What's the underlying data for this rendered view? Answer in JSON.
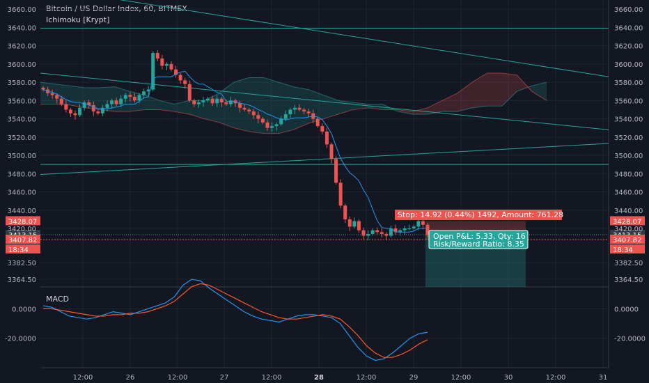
{
  "header": {
    "symbol_title": "Bitcoin / US Dollar Index, 60, BITMEX",
    "indicator1": "Ichimoku [Krypt]",
    "indicator2": "MACD"
  },
  "colors": {
    "background": "#131722",
    "grid": "#1f2333",
    "up": "#26a69a",
    "down": "#ef5350",
    "price_line": "#ef5350",
    "trend_lines": "#26a69a",
    "macd_line": "#2196f3",
    "signal_line": "#ff5722"
  },
  "chart_data": [
    {
      "type": "candlestick",
      "title": "Bitcoin / US Dollar Index, 60, BITMEX",
      "x_ticks": [
        "12:00",
        "26",
        "12:00",
        "27",
        "12:00",
        "28",
        "12:00",
        "29",
        "12:00",
        "30",
        "12:00",
        "31"
      ],
      "y_ticks": [
        "3660.00",
        "3640.00",
        "3620.00",
        "3600.00",
        "3580.00",
        "3560.00",
        "3540.00",
        "3520.00",
        "3500.00",
        "3480.00",
        "3460.00",
        "3440.00",
        "3420.00",
        "3382.50",
        "3364.50"
      ],
      "ylim": [
        3356,
        3670
      ],
      "price_labels": {
        "stop_price": "3428.07",
        "current": "3413.15",
        "entry": "3407.82",
        "countdown": "18:34"
      },
      "annotations": {
        "stop_box": "Stop: 14.92 (0.44%) 1492, Amount: 761.28",
        "pnl_box_line1": "Open P&L: 5.33, Qty: 16",
        "pnl_box_line2": "Risk/Reward Ratio: 8.35"
      },
      "close_series": [
        3572,
        3568,
        3566,
        3562,
        3556,
        3550,
        3546,
        3544,
        3552,
        3558,
        3555,
        3548,
        3546,
        3552,
        3556,
        3560,
        3556,
        3562,
        3566,
        3564,
        3560,
        3566,
        3570,
        3572,
        3612,
        3606,
        3598,
        3600,
        3594,
        3588,
        3582,
        3578,
        3560,
        3556,
        3558,
        3560,
        3562,
        3557,
        3562,
        3558,
        3556,
        3560,
        3557,
        3552,
        3550,
        3548,
        3544,
        3540,
        3536,
        3530,
        3532,
        3534,
        3540,
        3545,
        3550,
        3552,
        3550,
        3548,
        3546,
        3540,
        3532,
        3526,
        3512,
        3496,
        3470,
        3445,
        3430,
        3422,
        3428,
        3418,
        3412,
        3414,
        3418,
        3416,
        3414,
        3412,
        3420,
        3416,
        3418,
        3420,
        3420,
        3422,
        3428,
        3424,
        3413
      ],
      "kumo_span_a": [
        3580,
        3578,
        3576,
        3574,
        3574,
        3575,
        3570,
        3566,
        3560,
        3556,
        3560,
        3560,
        3568,
        3580,
        3585,
        3585,
        3580,
        3575,
        3572,
        3566,
        3560,
        3558,
        3556,
        3556,
        3548,
        3545,
        3545,
        3548,
        3548,
        3552,
        3554,
        3554,
        3570,
        3576,
        3580
      ],
      "kumo_span_b": [
        3556,
        3556,
        3555,
        3552,
        3550,
        3548,
        3548,
        3550,
        3550,
        3548,
        3545,
        3540,
        3536,
        3530,
        3526,
        3524,
        3524,
        3528,
        3535,
        3540,
        3545,
        3550,
        3552,
        3550,
        3550,
        3548,
        3552,
        3560,
        3568,
        3580,
        3590,
        3590,
        3588,
        3570,
        3560
      ]
    },
    {
      "type": "line",
      "title": "MACD",
      "y_ticks": [
        "0.0000",
        "-20.0000"
      ],
      "series": [
        {
          "values": [
            2,
            1,
            -2,
            -5,
            -6,
            -7,
            -6,
            -4,
            -2,
            -3,
            -4,
            -2,
            0,
            2,
            4,
            8,
            16,
            20,
            19,
            14,
            10,
            6,
            2,
            -2,
            -5,
            -7,
            -8,
            -9,
            -7,
            -5,
            -4,
            -4,
            -5,
            -6,
            -10,
            -18,
            -26,
            -32,
            -35,
            -34,
            -30,
            -25,
            -20,
            -17,
            -16
          ]
        },
        {
          "values": [
            0,
            0,
            -1,
            -2,
            -3,
            -4,
            -5,
            -5,
            -4,
            -4,
            -3,
            -3,
            -2,
            0,
            2,
            5,
            10,
            15,
            17,
            16,
            13,
            10,
            7,
            4,
            1,
            -2,
            -4,
            -6,
            -7,
            -7,
            -6,
            -5,
            -4,
            -5,
            -7,
            -12,
            -18,
            -25,
            -30,
            -33,
            -33,
            -31,
            -28,
            -24,
            -21
          ]
        }
      ]
    }
  ]
}
